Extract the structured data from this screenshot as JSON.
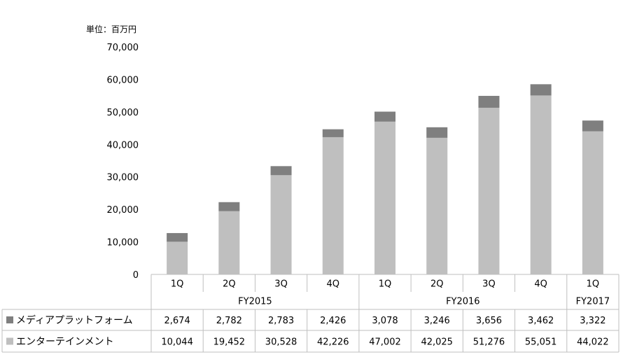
{
  "chart_data": {
    "type": "bar",
    "stacked": true,
    "unit_label": "単位：百万円",
    "ylim": [
      0,
      70000
    ],
    "yticks": [
      "0",
      "10,000",
      "20,000",
      "30,000",
      "40,000",
      "50,000",
      "60,000",
      "70,000"
    ],
    "ytick_values": [
      0,
      10000,
      20000,
      30000,
      40000,
      50000,
      60000,
      70000
    ],
    "categories": [
      "1Q",
      "2Q",
      "3Q",
      "4Q",
      "1Q",
      "2Q",
      "3Q",
      "4Q",
      "1Q"
    ],
    "groups": [
      {
        "label": "FY2015",
        "count": 4
      },
      {
        "label": "FY2016",
        "count": 4
      },
      {
        "label": "FY2017",
        "count": 1
      }
    ],
    "series": [
      {
        "name": "エンターテインメント",
        "color": "#bfbfbf",
        "values": [
          10044,
          19452,
          30528,
          42226,
          47002,
          42025,
          51276,
          55051,
          44022
        ],
        "labels": [
          "10,044",
          "19,452",
          "30,528",
          "42,226",
          "47,002",
          "42,025",
          "51,276",
          "55,051",
          "44,022"
        ]
      },
      {
        "name": "メディアプラットフォーム",
        "color": "#7f7f7f",
        "values": [
          2674,
          2782,
          2783,
          2426,
          3078,
          3246,
          3656,
          3462,
          3322
        ],
        "labels": [
          "2,674",
          "2,782",
          "2,783",
          "2,426",
          "3,078",
          "3,246",
          "3,656",
          "3,462",
          "3,322"
        ]
      }
    ],
    "table_row_order": [
      1,
      0
    ],
    "legend": "data-table-rows",
    "grid": false
  }
}
